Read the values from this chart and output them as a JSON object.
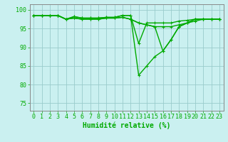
{
  "xlabel": "Humidité relative (%)",
  "background_color": "#caf0f0",
  "grid_color": "#99cccc",
  "line_color": "#00aa00",
  "xlim": [
    -0.5,
    23.5
  ],
  "ylim": [
    73,
    101.5
  ],
  "yticks": [
    75,
    80,
    85,
    90,
    95,
    100
  ],
  "xticks": [
    0,
    1,
    2,
    3,
    4,
    5,
    6,
    7,
    8,
    9,
    10,
    11,
    12,
    13,
    14,
    15,
    16,
    17,
    18,
    19,
    20,
    21,
    22,
    23
  ],
  "series": [
    [
      98.5,
      98.5,
      98.5,
      98.5,
      97.5,
      98.2,
      97.8,
      97.8,
      97.8,
      98.0,
      98.0,
      98.5,
      98.5,
      91.0,
      96.5,
      96.5,
      96.5,
      96.5,
      97.0,
      97.2,
      97.5,
      97.5,
      97.5,
      97.5
    ],
    [
      98.5,
      98.5,
      98.5,
      98.5,
      97.5,
      98.2,
      97.8,
      97.8,
      97.8,
      98.0,
      98.0,
      98.5,
      98.5,
      82.5,
      85.0,
      87.5,
      89.0,
      92.0,
      95.5,
      96.5,
      97.5,
      97.5,
      97.5,
      97.5
    ],
    [
      98.5,
      98.5,
      98.5,
      98.5,
      97.5,
      97.8,
      97.5,
      97.5,
      97.5,
      97.8,
      97.8,
      98.0,
      97.5,
      96.5,
      96.0,
      95.5,
      89.0,
      92.0,
      95.5,
      96.5,
      97.5,
      97.5,
      97.5,
      97.5
    ],
    [
      98.5,
      98.5,
      98.5,
      98.5,
      97.5,
      97.8,
      97.5,
      97.5,
      97.5,
      97.8,
      97.8,
      98.0,
      97.5,
      96.5,
      96.0,
      95.5,
      95.5,
      95.5,
      96.0,
      96.5,
      97.0,
      97.5,
      97.5,
      97.5
    ]
  ],
  "xlabel_fontsize": 7,
  "tick_fontsize": 6,
  "line_width": 1.0,
  "marker_size": 2.5
}
